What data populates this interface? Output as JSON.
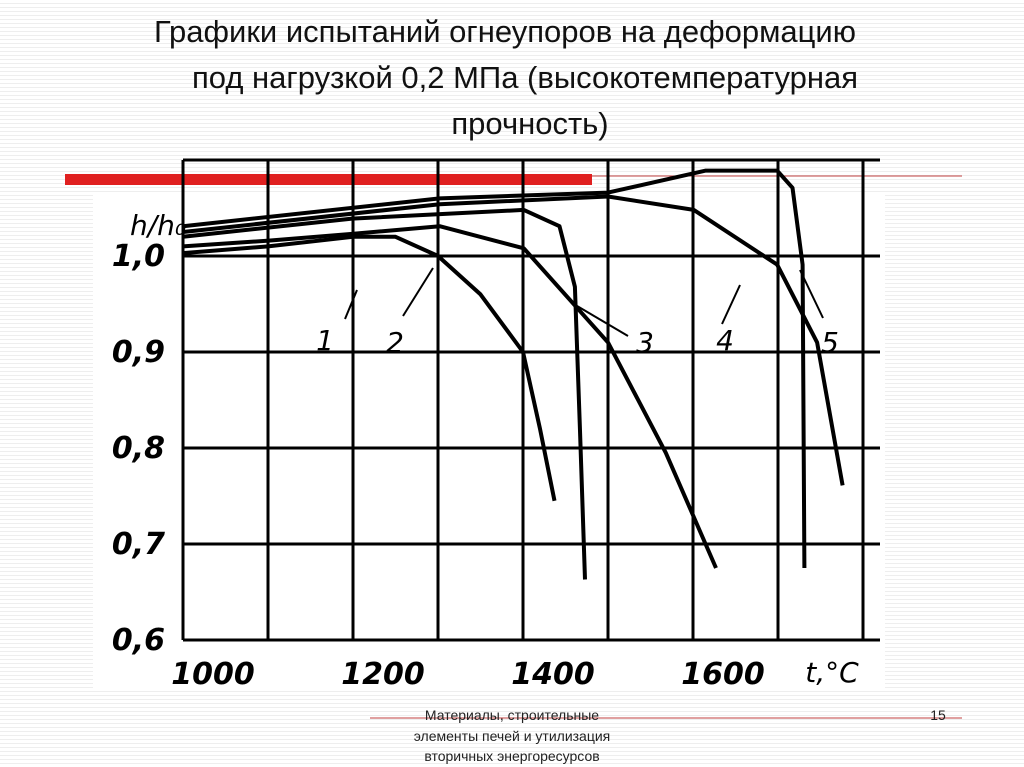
{
  "slide": {
    "title_lines": [
      "Графики испытаний огнеупоров на деформацию",
      "под нагрузкой 0,2 МПа (высокотемпературная",
      "прочность)"
    ],
    "footer_lines": [
      "Материалы, строительные",
      "элементы печей и  утилизация",
      "вторичных энергоресурсов"
    ],
    "page_number": "15"
  },
  "chart_data": {
    "type": "line",
    "y_label": "h/h₀",
    "x_label": "t,°C",
    "xlim": [
      1000,
      1820
    ],
    "ylim": [
      0.6,
      1.1
    ],
    "xticks": [
      1000,
      1200,
      1400,
      1600
    ],
    "xminorticks": [
      1100,
      1300,
      1500,
      1700,
      1800
    ],
    "yticks": [
      {
        "value": 0.6,
        "label": "0,6"
      },
      {
        "value": 0.7,
        "label": "0,7"
      },
      {
        "value": 0.8,
        "label": "0,8"
      },
      {
        "value": 0.9,
        "label": "0,9"
      },
      {
        "value": 1.0,
        "label": "1,0"
      }
    ],
    "yminorticks": [
      1.1
    ],
    "grid": true,
    "color": "#000000",
    "series": [
      {
        "name": "1",
        "x": [
          1000,
          1100,
          1200,
          1250,
          1300,
          1350,
          1400,
          1420,
          1437
        ],
        "values": [
          1.003,
          1.01,
          1.02,
          1.02,
          1.0,
          0.96,
          0.9,
          0.82,
          0.745
        ]
      },
      {
        "name": "2",
        "x": [
          1000,
          1101,
          1199,
          1302,
          1401,
          1500,
          1568,
          1627
        ],
        "values": [
          1.01,
          1.016,
          1.023,
          1.031,
          1.008,
          0.91,
          0.795,
          0.675
        ]
      },
      {
        "name": "3",
        "x": [
          1000,
          1199,
          1401,
          1443,
          1461,
          1467,
          1473
        ],
        "values": [
          1.02,
          1.039,
          1.048,
          1.031,
          0.968,
          0.818,
          0.663
        ]
      },
      {
        "name": "4",
        "x": [
          1000,
          1302,
          1500,
          1601,
          1699,
          1746,
          1776
        ],
        "values": [
          1.025,
          1.054,
          1.062,
          1.048,
          0.991,
          0.91,
          0.761
        ]
      },
      {
        "name": "5",
        "x": [
          1000,
          1302,
          1500,
          1615,
          1699,
          1717,
          1729,
          1731
        ],
        "values": [
          1.031,
          1.06,
          1.066,
          1.089,
          1.089,
          1.071,
          0.991,
          0.675
        ]
      }
    ]
  }
}
